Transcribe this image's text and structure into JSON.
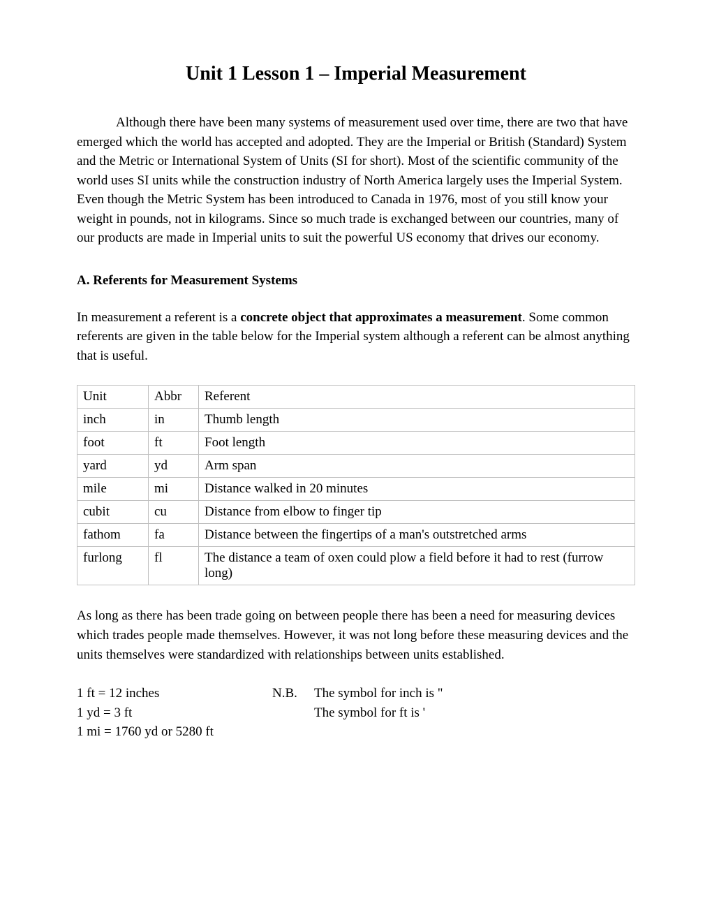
{
  "title": "Unit 1 Lesson 1 – Imperial Measurement",
  "intro_paragraph": "Although there have been many systems of measurement used over time, there are two that have emerged which the world has accepted and adopted.  They are the Imperial or British (Standard) System and the Metric or International System of Units (SI for short).  Most of the scientific community of the world uses SI units while the construction industry of North America largely uses the Imperial System.  Even though the Metric System has been introduced to Canada in 1976, most of you still know your weight in pounds, not in kilograms.  Since so much trade is exchanged between our countries, many of our products are made in Imperial units to suit the powerful US economy that drives our economy.",
  "section_a_heading": "A.  Referents for Measurement Systems",
  "referent_intro_pre": "In measurement a referent is a ",
  "referent_intro_bold": "concrete object that approximates a measurement",
  "referent_intro_post": ".  Some common referents are given in the table below for the Imperial system although a referent can be almost anything that is useful.",
  "table": {
    "headers": {
      "unit": "Unit",
      "abbr": "Abbr",
      "referent": "Referent"
    },
    "rows": [
      {
        "unit": "inch",
        "abbr": "in",
        "referent": "Thumb length"
      },
      {
        "unit": "foot",
        "abbr": "ft",
        "referent": "Foot length"
      },
      {
        "unit": "yard",
        "abbr": "yd",
        "referent": "Arm span"
      },
      {
        "unit": "mile",
        "abbr": "mi",
        "referent": "Distance walked in 20 minutes"
      },
      {
        "unit": "cubit",
        "abbr": "cu",
        "referent": "Distance from elbow to finger tip"
      },
      {
        "unit": "fathom",
        "abbr": "fa",
        "referent": "Distance between the fingertips of a man's outstretched arms"
      },
      {
        "unit": "furlong",
        "abbr": "fl",
        "referent": "The distance a team of oxen could plow a field before it had to rest (furrow long)"
      }
    ]
  },
  "trade_paragraph": "As long as there has been trade going on between people there has been a need for measuring devices which trades people made themselves.  However, it was not long before these measuring devices and the units themselves were standardized with relationships between units established.",
  "conversions": {
    "line1": "1 ft = 12 inches",
    "line2": "1 yd = 3 ft",
    "line3": "1 mi = 1760 yd or 5280 ft",
    "nb_label": "N.B.",
    "nb_line1": "The symbol for inch is \"",
    "nb_line2": "The symbol for ft is '"
  }
}
